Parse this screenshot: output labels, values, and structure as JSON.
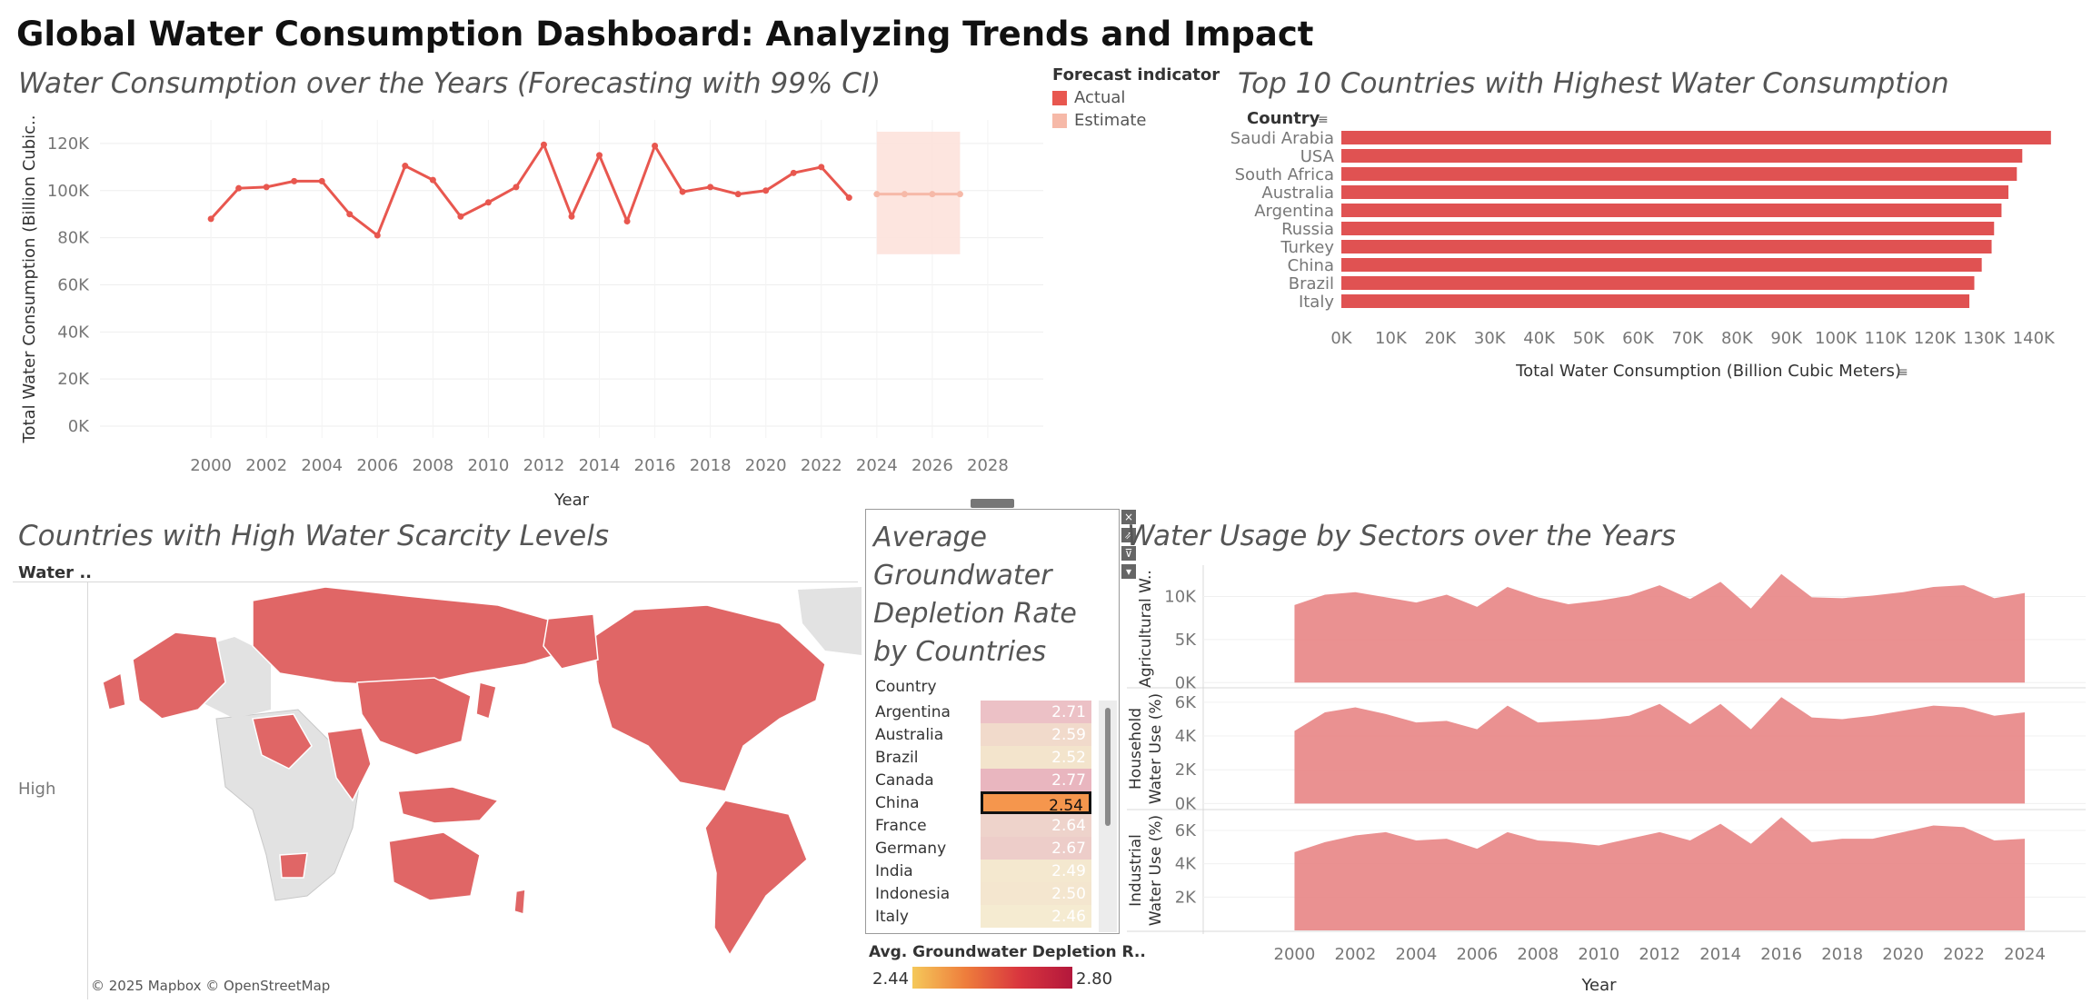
{
  "dashboard_title": "Global Water Consumption Dashboard: Analyzing Trends and Impact",
  "panels": {
    "line": {
      "title": "Water Consumption over the Years (Forecasting with 99% CI)",
      "legend_title": "Forecast indicator",
      "legend_items": [
        {
          "label": "Actual",
          "color": "#e8574f"
        },
        {
          "label": "Estimate",
          "color": "#f6b9a8"
        }
      ]
    },
    "bars": {
      "title": "Top 10 Countries with Highest Water Consumption"
    },
    "map": {
      "title": "Countries with High Water Scarcity Levels",
      "column_header": "Water ..",
      "row_label": "High",
      "attribution": "© 2025 Mapbox © OpenStreetMap",
      "fill_color": "#e06666",
      "base_color": "#e2e2e2"
    },
    "table": {
      "title": "Average Groundwater Depletion Rate by Countries",
      "column_header": "Country",
      "rows": [
        {
          "country": "Argentina",
          "value": "2.71",
          "color": "#ecc1c6"
        },
        {
          "country": "Australia",
          "value": "2.59",
          "color": "#f1dacb"
        },
        {
          "country": "Brazil",
          "value": "2.52",
          "color": "#f3e4cc"
        },
        {
          "country": "Canada",
          "value": "2.77",
          "color": "#e9b6bf"
        },
        {
          "country": "China",
          "value": "2.54",
          "color": "#f5964d",
          "selected": true
        },
        {
          "country": "France",
          "value": "2.64",
          "color": "#eed3cb"
        },
        {
          "country": "Germany",
          "value": "2.67",
          "color": "#edcdc9"
        },
        {
          "country": "India",
          "value": "2.49",
          "color": "#f4e8cf"
        },
        {
          "country": "Indonesia",
          "value": "2.50",
          "color": "#f4e6cf"
        },
        {
          "country": "Italy",
          "value": "2.46",
          "color": "#f5ebd1"
        }
      ],
      "legend_title": "Avg. Groundwater Depletion R..",
      "legend_min": "2.44",
      "legend_max": "2.80",
      "controls": [
        "×",
        "⇗",
        "⊽",
        "▾"
      ]
    },
    "sectors": {
      "title": "Water Usage by Sectors over the Years"
    }
  },
  "chart_data": [
    {
      "type": "line",
      "title": "Water Consumption over the Years (Forecasting with 99% CI)",
      "xlabel": "Year",
      "ylabel": "Total Water Consumption (Billion Cubic..",
      "xlim": [
        1996,
        2030
      ],
      "ylim": [
        -5000,
        130000
      ],
      "x_ticks": [
        2000,
        2002,
        2004,
        2006,
        2008,
        2010,
        2012,
        2014,
        2016,
        2018,
        2020,
        2022,
        2024,
        2026,
        2028
      ],
      "y_ticks": [
        0,
        20000,
        40000,
        60000,
        80000,
        100000,
        120000
      ],
      "y_tick_labels": [
        "0K",
        "20K",
        "40K",
        "60K",
        "80K",
        "100K",
        "120K"
      ],
      "series": [
        {
          "name": "Actual",
          "color": "#e8574f",
          "x": [
            2000,
            2001,
            2002,
            2003,
            2004,
            2005,
            2006,
            2007,
            2008,
            2009,
            2010,
            2011,
            2012,
            2013,
            2014,
            2015,
            2016,
            2017,
            2018,
            2019,
            2020,
            2021,
            2022,
            2023
          ],
          "y": [
            88000,
            101000,
            101500,
            104000,
            104000,
            90000,
            81000,
            110500,
            104500,
            89000,
            95000,
            101500,
            119500,
            89000,
            115000,
            87000,
            119000,
            99500,
            101500,
            98500,
            100000,
            107500,
            110000,
            97000
          ]
        },
        {
          "name": "Estimate",
          "color": "#f6b9a8",
          "x": [
            2024,
            2025,
            2026,
            2027
          ],
          "y": [
            98500,
            98500,
            98500,
            98500
          ],
          "ci_lower": 73000,
          "ci_upper": 125000
        }
      ]
    },
    {
      "type": "bar",
      "orientation": "horizontal",
      "title": "Top 10 Countries with Highest Water Consumption",
      "xlabel": "Total Water Consumption (Billion Cubic Meters)",
      "ylabel": "Country",
      "xlim": [
        0,
        145000
      ],
      "x_ticks": [
        0,
        10000,
        20000,
        30000,
        40000,
        50000,
        60000,
        70000,
        80000,
        90000,
        100000,
        110000,
        120000,
        130000,
        140000
      ],
      "x_tick_labels": [
        "0K",
        "10K",
        "20K",
        "30K",
        "40K",
        "50K",
        "60K",
        "70K",
        "80K",
        "90K",
        "100K",
        "110K",
        "120K",
        "130K",
        "140K"
      ],
      "categories": [
        "Saudi Arabia",
        "USA",
        "South Africa",
        "Australia",
        "Argentina",
        "Russia",
        "Turkey",
        "China",
        "Brazil",
        "Italy"
      ],
      "values": [
        143500,
        137700,
        136600,
        134900,
        133500,
        132000,
        131500,
        129500,
        128000,
        127000
      ],
      "color": "#e05252"
    },
    {
      "type": "area",
      "title": "Water Usage by Sectors over the Years",
      "xlabel": "Year",
      "xlim": [
        1997,
        2026
      ],
      "x_ticks": [
        2000,
        2002,
        2004,
        2006,
        2008,
        2010,
        2012,
        2014,
        2016,
        2018,
        2020,
        2022,
        2024
      ],
      "x": [
        2000,
        2001,
        2002,
        2003,
        2004,
        2005,
        2006,
        2007,
        2008,
        2009,
        2010,
        2011,
        2012,
        2013,
        2014,
        2015,
        2016,
        2017,
        2018,
        2019,
        2020,
        2021,
        2022,
        2023,
        2024
      ],
      "color": "#e88585",
      "series": [
        {
          "name": "Agricultural W..",
          "ylim": [
            -500,
            13000
          ],
          "y_ticks": [
            0,
            5000,
            10000
          ],
          "y_tick_labels": [
            "0K",
            "5K",
            "10K"
          ],
          "values": [
            9000,
            10200,
            10500,
            9900,
            9300,
            10200,
            8800,
            11100,
            9900,
            9100,
            9500,
            10100,
            11300,
            9700,
            11700,
            8600,
            12600,
            9900,
            9800,
            10100,
            10500,
            11100,
            11300,
            9800,
            10400
          ]
        },
        {
          "name": "Household Water Use (%)",
          "ylim": [
            -300,
            6800
          ],
          "y_ticks": [
            0,
            2000,
            4000,
            6000
          ],
          "y_tick_labels": [
            "0K",
            "2K",
            "4K",
            "6K"
          ],
          "values": [
            4300,
            5400,
            5700,
            5300,
            4800,
            4900,
            4400,
            5800,
            4800,
            4900,
            5000,
            5200,
            5900,
            4700,
            5900,
            4400,
            6300,
            5100,
            5000,
            5200,
            5500,
            5800,
            5700,
            5200,
            5400
          ]
        },
        {
          "name": "Industrial Water Use (%)",
          "ylim": [
            0,
            7200
          ],
          "y_ticks": [
            2000,
            4000,
            6000
          ],
          "y_tick_labels": [
            "2K",
            "4K",
            "6K"
          ],
          "values": [
            4700,
            5300,
            5700,
            5900,
            5400,
            5500,
            4900,
            5900,
            5400,
            5300,
            5100,
            5500,
            5900,
            5400,
            6400,
            5200,
            6800,
            5300,
            5500,
            5500,
            5900,
            6300,
            6200,
            5400,
            5500
          ]
        }
      ]
    }
  ]
}
